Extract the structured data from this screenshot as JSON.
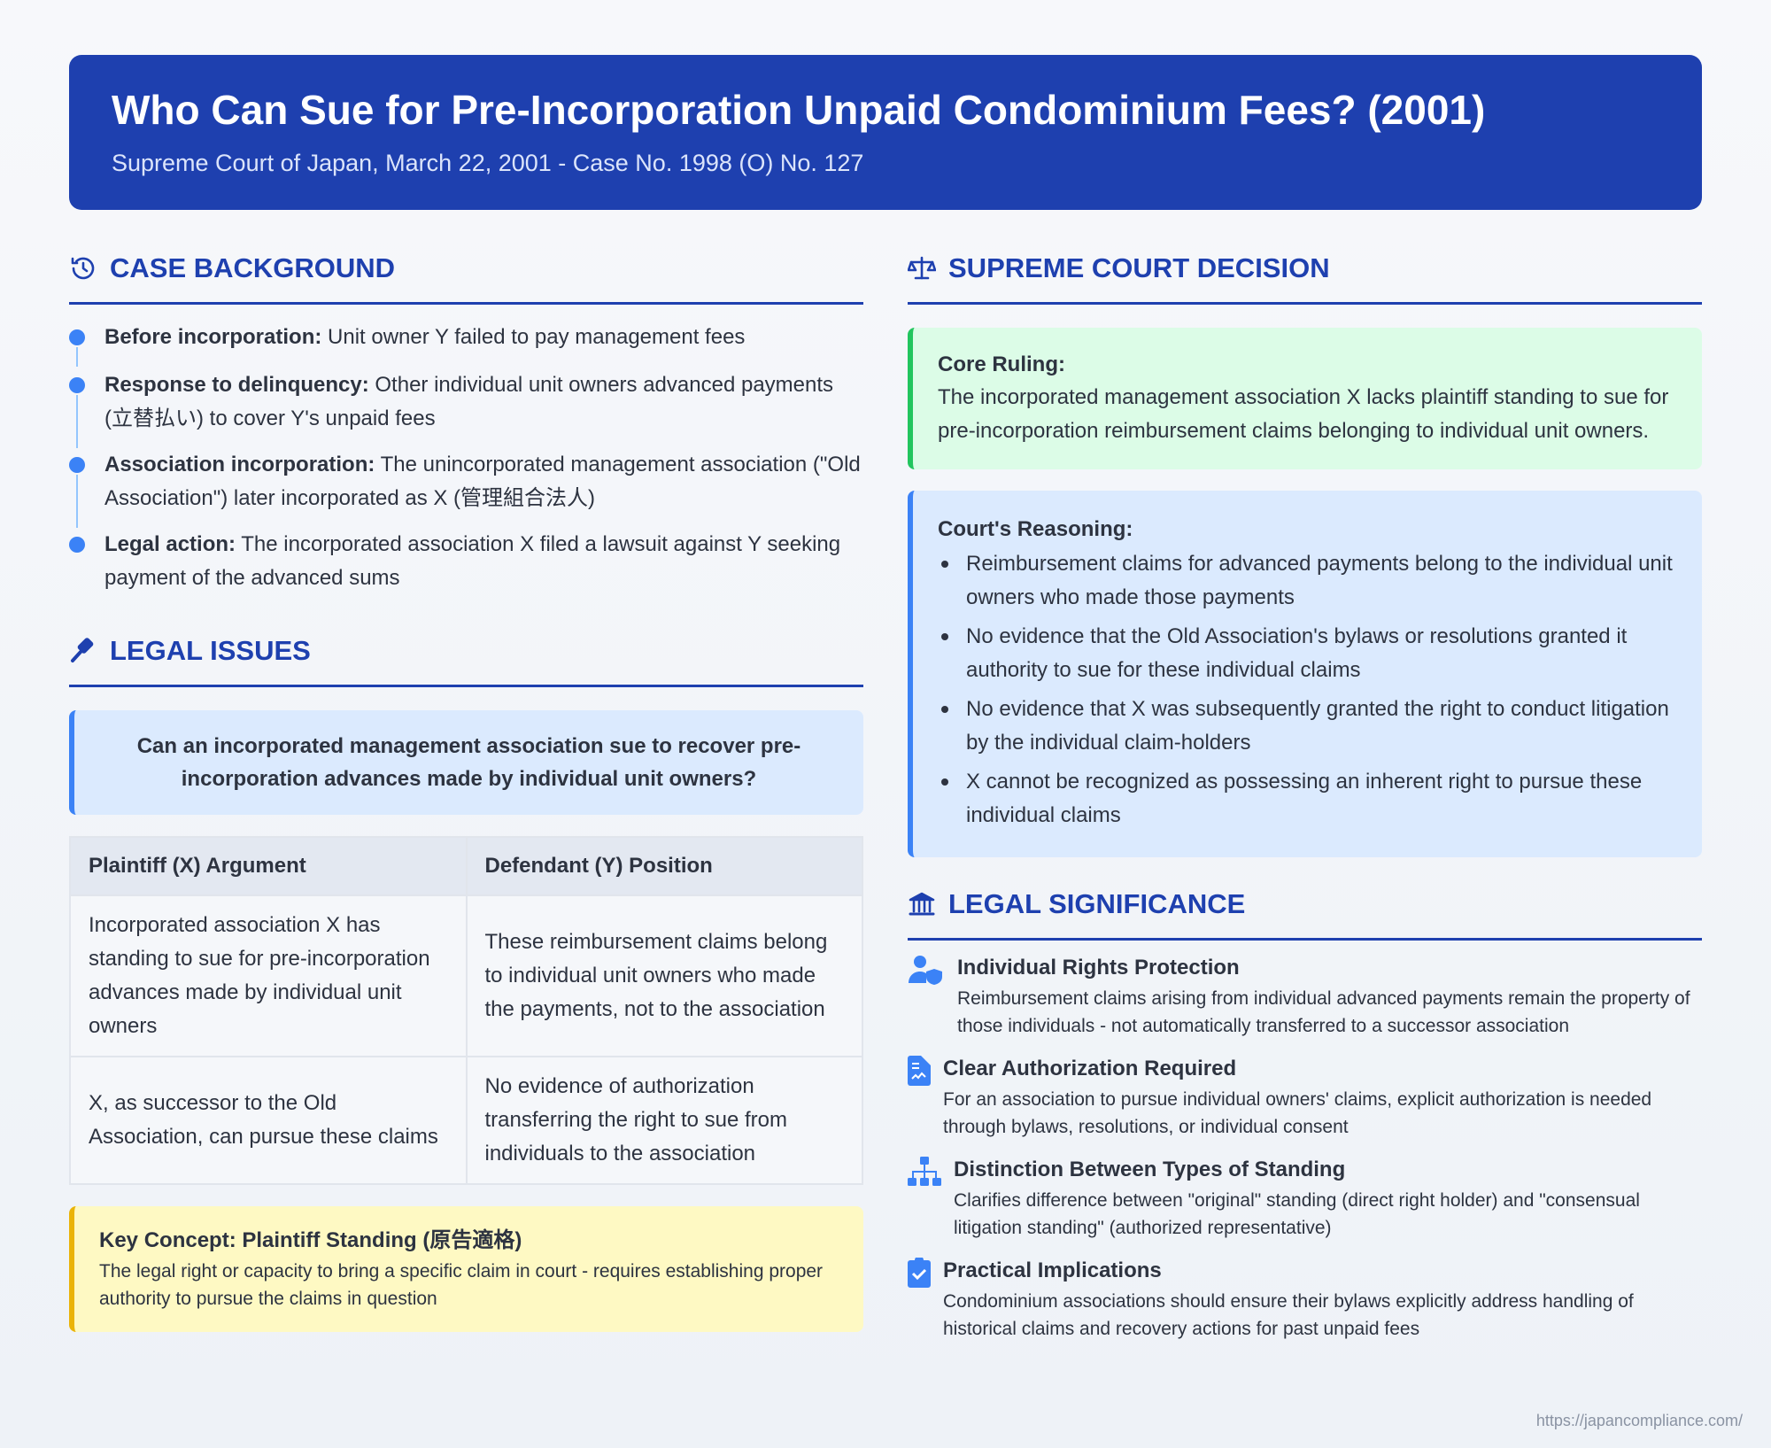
{
  "header": {
    "title": "Who Can Sue for Pre-Incorporation Unpaid Condominium Fees? (2001)",
    "subtitle": "Supreme Court of Japan, March 22, 2001 - Case No. 1998 (O) No. 127"
  },
  "background": {
    "title": "CASE BACKGROUND",
    "icon": "history-icon",
    "items": [
      {
        "label": "Before incorporation:",
        "text": " Unit owner Y failed to pay management fees"
      },
      {
        "label": "Response to delinquency:",
        "text": " Other individual unit owners advanced payments (立替払い) to cover Y's unpaid fees"
      },
      {
        "label": "Association incorporation:",
        "text": " The unincorporated management association (\"Old Association\") later incorporated as X (管理組合法人)"
      },
      {
        "label": "Legal action:",
        "text": " The incorporated association X filed a lawsuit against Y seeking payment of the advanced sums"
      }
    ]
  },
  "issues": {
    "title": "LEGAL ISSUES",
    "icon": "gavel-icon",
    "question": "Can an incorporated management association sue to recover pre-incorporation advances made by individual unit owners?",
    "table": {
      "headers": [
        "Plaintiff (X) Argument",
        "Defendant (Y) Position"
      ],
      "rows": [
        [
          "Incorporated association X has standing to sue for pre-incorporation advances made by individual unit owners",
          "These reimbursement claims belong to individual unit owners who made the payments, not to the association"
        ],
        [
          "X, as successor to the Old Association, can pursue these claims",
          "No evidence of authorization transferring the right to sue from individuals to the association"
        ]
      ]
    },
    "concept": {
      "title": "Key Concept: Plaintiff Standing (原告適格)",
      "text": "The legal right or capacity to bring a specific claim in court - requires establishing proper authority to pursue the claims in question"
    }
  },
  "decision": {
    "title": "SUPREME COURT DECISION",
    "icon": "scales-icon",
    "ruling_title": "Core Ruling:",
    "ruling_text": "The incorporated management association X lacks plaintiff standing to sue for pre-incorporation reimbursement claims belonging to individual unit owners.",
    "reasoning_title": "Court's Reasoning:",
    "reasoning": [
      "Reimbursement claims for advanced payments belong to the individual unit owners who made those payments",
      "No evidence that the Old Association's bylaws or resolutions granted it authority to sue for these individual claims",
      "No evidence that X was subsequently granted the right to conduct litigation by the individual claim-holders",
      "X cannot be recognized as possessing an inherent right to pursue these individual claims"
    ]
  },
  "significance": {
    "title": "LEGAL SIGNIFICANCE",
    "icon": "institution-icon",
    "items": [
      {
        "icon": "user-shield-icon",
        "title": "Individual Rights Protection",
        "text": "Reimbursement claims arising from individual advanced payments remain the property of those individuals - not automatically transferred to a successor association"
      },
      {
        "icon": "file-contract-icon",
        "title": "Clear Authorization Required",
        "text": "For an association to pursue individual owners' claims, explicit authorization is needed through bylaws, resolutions, or individual consent"
      },
      {
        "icon": "sitemap-icon",
        "title": "Distinction Between Types of Standing",
        "text": "Clarifies difference between \"original\" standing (direct right holder) and \"consensual litigation standing\" (authorized representative)"
      },
      {
        "icon": "clipboard-check-icon",
        "title": "Practical Implications",
        "text": "Condominium associations should ensure their bylaws explicitly address handling of historical claims and recovery actions for past unpaid fees"
      }
    ]
  },
  "footer": "https://japancompliance.com/"
}
